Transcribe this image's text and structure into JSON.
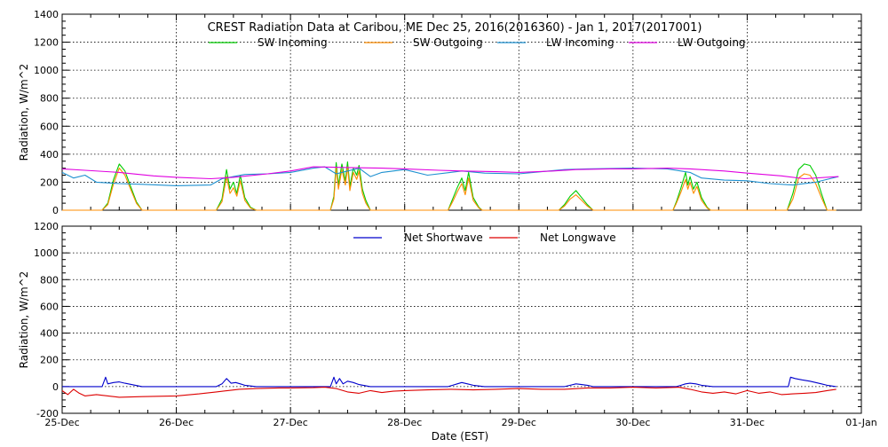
{
  "chart_data": [
    {
      "type": "line",
      "title": "CREST Radiation Data at Caribou, ME   Dec 25, 2016(2016360) - Jan  1, 2017(2017001)",
      "xlabel": "",
      "ylabel": "Radiation, W/m^2",
      "xlim": [
        0,
        7
      ],
      "ylim": [
        0,
        1400
      ],
      "yticks": [
        0,
        200,
        400,
        600,
        800,
        1000,
        1200,
        1400
      ],
      "grid": true,
      "legend_position": "top",
      "series": [
        {
          "name": "SW Incoming",
          "color": "#00cc00",
          "x": [
            0.0,
            0.35,
            0.4,
            0.45,
            0.5,
            0.55,
            0.6,
            0.65,
            0.7,
            1.0,
            1.35,
            1.4,
            1.44,
            1.47,
            1.5,
            1.53,
            1.56,
            1.6,
            1.65,
            1.7,
            2.0,
            2.35,
            2.38,
            2.4,
            2.42,
            2.45,
            2.48,
            2.5,
            2.52,
            2.55,
            2.58,
            2.6,
            2.63,
            2.66,
            2.7,
            3.0,
            3.38,
            3.42,
            3.46,
            3.5,
            3.53,
            3.56,
            3.6,
            3.65,
            3.68,
            4.0,
            4.35,
            4.4,
            4.45,
            4.5,
            4.55,
            4.6,
            4.65,
            5.0,
            5.35,
            5.38,
            5.42,
            5.46,
            5.48,
            5.5,
            5.53,
            5.56,
            5.6,
            5.65,
            5.68,
            6.0,
            6.35,
            6.4,
            6.45,
            6.5,
            6.55,
            6.6,
            6.65,
            6.7,
            6.78
          ],
          "values": [
            0,
            0,
            50,
            220,
            330,
            280,
            170,
            60,
            0,
            0,
            0,
            80,
            290,
            150,
            200,
            120,
            250,
            90,
            20,
            0,
            0,
            0,
            100,
            340,
            180,
            330,
            210,
            345,
            170,
            300,
            250,
            320,
            150,
            70,
            0,
            0,
            0,
            80,
            160,
            230,
            140,
            270,
            90,
            20,
            0,
            0,
            0,
            40,
            100,
            140,
            90,
            40,
            0,
            0,
            0,
            60,
            160,
            270,
            180,
            240,
            150,
            200,
            90,
            20,
            0,
            0,
            0,
            120,
            290,
            330,
            320,
            250,
            120,
            0,
            0
          ]
        },
        {
          "name": "SW Outgoing",
          "color": "#ff8c00",
          "x": [
            0.0,
            0.35,
            0.4,
            0.45,
            0.5,
            0.55,
            0.6,
            0.65,
            0.7,
            1.0,
            1.35,
            1.4,
            1.44,
            1.47,
            1.5,
            1.53,
            1.56,
            1.6,
            1.65,
            1.7,
            2.0,
            2.35,
            2.38,
            2.4,
            2.42,
            2.45,
            2.48,
            2.5,
            2.52,
            2.55,
            2.58,
            2.6,
            2.63,
            2.66,
            2.7,
            3.0,
            3.38,
            3.42,
            3.46,
            3.5,
            3.53,
            3.56,
            3.6,
            3.65,
            3.68,
            4.0,
            4.35,
            4.4,
            4.45,
            4.5,
            4.55,
            4.6,
            4.65,
            5.0,
            5.35,
            5.38,
            5.42,
            5.46,
            5.48,
            5.5,
            5.53,
            5.56,
            5.6,
            5.65,
            5.68,
            6.0,
            6.35,
            6.4,
            6.45,
            6.5,
            6.55,
            6.6,
            6.65,
            6.7,
            6.78
          ],
          "values": [
            0,
            0,
            40,
            190,
            300,
            250,
            150,
            50,
            0,
            0,
            0,
            60,
            240,
            120,
            160,
            100,
            210,
            70,
            15,
            0,
            0,
            0,
            80,
            300,
            150,
            290,
            180,
            310,
            140,
            270,
            220,
            280,
            120,
            50,
            0,
            0,
            0,
            60,
            130,
            190,
            110,
            230,
            70,
            15,
            0,
            0,
            0,
            30,
            80,
            110,
            70,
            30,
            0,
            0,
            0,
            50,
            130,
            220,
            150,
            200,
            120,
            170,
            70,
            15,
            0,
            0,
            0,
            80,
            230,
            260,
            250,
            190,
            90,
            0,
            0
          ]
        },
        {
          "name": "LW Incoming",
          "color": "#1e90d0",
          "x": [
            0.0,
            0.1,
            0.2,
            0.3,
            0.4,
            0.5,
            0.7,
            1.0,
            1.3,
            1.4,
            1.5,
            1.6,
            1.8,
            2.0,
            2.2,
            2.3,
            2.4,
            2.5,
            2.6,
            2.7,
            2.8,
            3.0,
            3.2,
            3.4,
            3.5,
            3.7,
            4.0,
            4.2,
            4.4,
            4.6,
            5.0,
            5.3,
            5.5,
            5.6,
            5.8,
            6.0,
            6.2,
            6.4,
            6.6,
            6.8
          ],
          "values": [
            270,
            230,
            250,
            200,
            195,
            190,
            185,
            175,
            180,
            225,
            240,
            255,
            260,
            270,
            300,
            310,
            260,
            280,
            300,
            240,
            270,
            290,
            250,
            270,
            280,
            265,
            260,
            275,
            290,
            295,
            300,
            295,
            270,
            230,
            215,
            210,
            190,
            180,
            200,
            240
          ]
        },
        {
          "name": "LW Outgoing",
          "color": "#e000e0",
          "x": [
            0.0,
            0.2,
            0.5,
            0.8,
            1.0,
            1.3,
            1.5,
            1.8,
            2.0,
            2.2,
            2.5,
            2.8,
            3.0,
            3.3,
            3.5,
            3.8,
            4.0,
            4.3,
            4.5,
            4.8,
            5.0,
            5.3,
            5.5,
            5.8,
            6.0,
            6.3,
            6.5,
            6.8
          ],
          "values": [
            295,
            285,
            270,
            245,
            235,
            225,
            235,
            260,
            280,
            310,
            305,
            300,
            295,
            285,
            280,
            275,
            270,
            280,
            290,
            295,
            295,
            300,
            295,
            280,
            265,
            245,
            225,
            240
          ]
        }
      ]
    },
    {
      "type": "line",
      "title": "",
      "xlabel": "Date (EST)",
      "ylabel": "Radiation, W/m^2",
      "xlim": [
        0,
        7
      ],
      "ylim": [
        -200,
        1200
      ],
      "yticks": [
        -200,
        0,
        200,
        400,
        600,
        800,
        1000,
        1200
      ],
      "categories": [
        "25-Dec",
        "26-Dec",
        "27-Dec",
        "28-Dec",
        "29-Dec",
        "30-Dec",
        "31-Dec",
        "01-Jan"
      ],
      "grid": true,
      "legend_position": "top",
      "series": [
        {
          "name": "Net Shortwave",
          "color": "#0000cc",
          "x": [
            0.0,
            0.35,
            0.38,
            0.4,
            0.45,
            0.5,
            0.55,
            0.7,
            1.0,
            1.35,
            1.4,
            1.44,
            1.48,
            1.52,
            1.56,
            1.6,
            1.7,
            2.0,
            2.35,
            2.38,
            2.4,
            2.43,
            2.46,
            2.5,
            2.55,
            2.6,
            2.7,
            3.0,
            3.38,
            3.42,
            3.46,
            3.5,
            3.55,
            3.6,
            3.7,
            4.0,
            4.4,
            4.45,
            4.5,
            4.55,
            4.6,
            4.65,
            5.0,
            5.38,
            5.42,
            5.46,
            5.5,
            5.55,
            5.6,
            5.7,
            6.0,
            6.36,
            6.38,
            6.42,
            6.48,
            6.55,
            6.6,
            6.65,
            6.7,
            6.78
          ],
          "values": [
            0,
            0,
            70,
            20,
            30,
            35,
            25,
            0,
            0,
            0,
            20,
            60,
            25,
            30,
            20,
            10,
            0,
            0,
            0,
            70,
            20,
            60,
            20,
            40,
            30,
            15,
            0,
            0,
            0,
            10,
            20,
            30,
            20,
            10,
            0,
            0,
            0,
            10,
            20,
            15,
            10,
            0,
            0,
            0,
            10,
            20,
            25,
            20,
            10,
            0,
            0,
            0,
            70,
            60,
            50,
            40,
            30,
            20,
            10,
            0
          ]
        },
        {
          "name": "Net Longwave",
          "color": "#dd0000",
          "x": [
            0.0,
            0.05,
            0.1,
            0.15,
            0.2,
            0.3,
            0.5,
            0.7,
            1.0,
            1.2,
            1.35,
            1.45,
            1.55,
            1.7,
            1.9,
            2.0,
            2.2,
            2.3,
            2.4,
            2.5,
            2.6,
            2.7,
            2.8,
            2.9,
            3.0,
            3.2,
            3.4,
            3.6,
            3.8,
            4.0,
            4.2,
            4.4,
            4.6,
            4.8,
            5.0,
            5.2,
            5.4,
            5.5,
            5.6,
            5.7,
            5.8,
            5.9,
            6.0,
            6.1,
            6.2,
            6.3,
            6.4,
            6.5,
            6.6,
            6.7,
            6.78
          ],
          "values": [
            -30,
            -60,
            -20,
            -50,
            -70,
            -60,
            -80,
            -75,
            -70,
            -55,
            -40,
            -30,
            -20,
            -15,
            -10,
            -10,
            -8,
            -5,
            -15,
            -40,
            -50,
            -30,
            -45,
            -35,
            -30,
            -25,
            -20,
            -25,
            -20,
            -15,
            -20,
            -20,
            -10,
            -10,
            -5,
            -10,
            -5,
            -20,
            -40,
            -50,
            -40,
            -55,
            -30,
            -50,
            -40,
            -60,
            -55,
            -50,
            -45,
            -30,
            -20
          ]
        }
      ]
    }
  ]
}
